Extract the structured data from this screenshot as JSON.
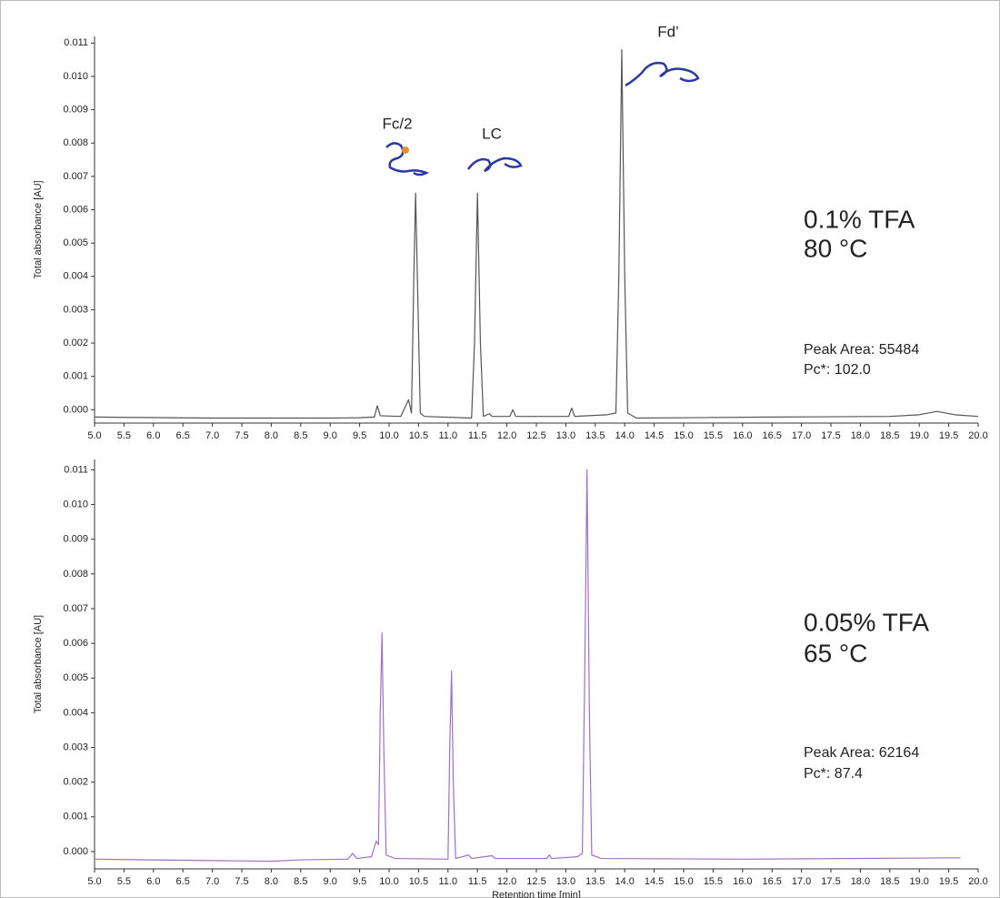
{
  "chart_data": [
    {
      "type": "line",
      "ylabel": "Total absorbance [AU]",
      "color": "#555555",
      "xlim": [
        5,
        20
      ],
      "ylim": [
        -0.0004,
        0.0112
      ],
      "xticks": [
        {
          "value": 5,
          "label": "5.0"
        },
        {
          "value": 5.5,
          "label": "5.5"
        },
        {
          "value": 6,
          "label": "6.0"
        },
        {
          "value": 6.5,
          "label": "6.5"
        },
        {
          "value": 7,
          "label": "7.0"
        },
        {
          "value": 7.5,
          "label": "7.5"
        },
        {
          "value": 8,
          "label": "8.0"
        },
        {
          "value": 8.5,
          "label": "8.5"
        },
        {
          "value": 9,
          "label": "9.0"
        },
        {
          "value": 9.5,
          "label": "9.5"
        },
        {
          "value": 10,
          "label": "10.0"
        },
        {
          "value": 10.5,
          "label": "10.5"
        },
        {
          "value": 11,
          "label": "11.0"
        },
        {
          "value": 11.5,
          "label": "11.5"
        },
        {
          "value": 12,
          "label": "12.0"
        },
        {
          "value": 12.5,
          "label": "12.5"
        },
        {
          "value": 13,
          "label": "13.0"
        },
        {
          "value": 13.5,
          "label": "13.5"
        },
        {
          "value": 14,
          "label": "14.0"
        },
        {
          "value": 14.5,
          "label": "14.5"
        },
        {
          "value": 15,
          "label": "15.0"
        },
        {
          "value": 15.5,
          "label": "15.5"
        },
        {
          "value": 16,
          "label": "16.0"
        },
        {
          "value": 16.5,
          "label": "16.5"
        },
        {
          "value": 17,
          "label": "17.0"
        },
        {
          "value": 17.5,
          "label": "17.5"
        },
        {
          "value": 18,
          "label": "18.0"
        },
        {
          "value": 18.5,
          "label": "18.5"
        },
        {
          "value": 19,
          "label": "19.0"
        },
        {
          "value": 19.5,
          "label": "19.5"
        },
        {
          "value": 20,
          "label": "20.0"
        }
      ],
      "yticks": [
        {
          "value": 0,
          "label": "0.000"
        },
        {
          "value": 0.001,
          "label": "0.001"
        },
        {
          "value": 0.002,
          "label": "0.002"
        },
        {
          "value": 0.003,
          "label": "0.003"
        },
        {
          "value": 0.004,
          "label": "0.004"
        },
        {
          "value": 0.005,
          "label": "0.005"
        },
        {
          "value": 0.006,
          "label": "0.006"
        },
        {
          "value": 0.007,
          "label": "0.007"
        },
        {
          "value": 0.008,
          "label": "0.008"
        },
        {
          "value": 0.009,
          "label": "0.009"
        },
        {
          "value": 0.01,
          "label": "0.010"
        },
        {
          "value": 0.011,
          "label": "0.011"
        }
      ],
      "annotations": [
        "Fc/2",
        "LC",
        "Fd’",
        "0.1% TFA",
        "80 °C",
        "Peak Area: 55484",
        "Pc*: 102.0"
      ],
      "x": [
        5.0,
        7.0,
        9.0,
        9.5,
        9.75,
        9.8,
        9.85,
        10.2,
        10.33,
        10.38,
        10.42,
        10.45,
        10.48,
        10.53,
        10.6,
        11.4,
        11.45,
        11.5,
        11.55,
        11.6,
        11.7,
        11.75,
        12.05,
        12.1,
        12.15,
        13.05,
        13.1,
        13.15,
        13.7,
        13.85,
        13.9,
        13.95,
        14.0,
        14.05,
        14.2,
        16.5,
        18.5,
        19.0,
        19.3,
        19.6,
        20.0
      ],
      "values": [
        -0.00022,
        -0.00025,
        -0.00025,
        -0.00024,
        -0.00022,
        0.00012,
        -0.00018,
        -0.0002,
        0.0003,
        -0.0001,
        0.004,
        0.0065,
        0.004,
        -0.0001,
        -0.0002,
        -0.00025,
        0.002,
        0.0065,
        0.002,
        -0.0002,
        -0.00012,
        -0.0002,
        -0.0002,
        0.0,
        -0.0002,
        -0.0002,
        5e-05,
        -0.0002,
        -0.00015,
        -0.0001,
        0.004,
        0.0108,
        0.004,
        -0.0001,
        -0.00025,
        -0.00022,
        -0.0002,
        -0.00015,
        -5e-05,
        -0.00015,
        -0.0002
      ]
    },
    {
      "type": "line",
      "ylabel": "Total absorbance [AU]",
      "xlabel": "Retention time [min]",
      "color": "#a070c0",
      "xlim": [
        5,
        20
      ],
      "ylim": [
        -0.0005,
        0.0113
      ],
      "xticks": [
        {
          "value": 5,
          "label": "5.0"
        },
        {
          "value": 5.5,
          "label": "5.5"
        },
        {
          "value": 6,
          "label": "6.0"
        },
        {
          "value": 6.5,
          "label": "6.5"
        },
        {
          "value": 7,
          "label": "7.0"
        },
        {
          "value": 7.5,
          "label": "7.5"
        },
        {
          "value": 8,
          "label": "8.0"
        },
        {
          "value": 8.5,
          "label": "8.5"
        },
        {
          "value": 9,
          "label": "9.0"
        },
        {
          "value": 9.5,
          "label": "9.5"
        },
        {
          "value": 10,
          "label": "10.0"
        },
        {
          "value": 10.5,
          "label": "10.5"
        },
        {
          "value": 11,
          "label": "11.0"
        },
        {
          "value": 11.5,
          "label": "11.5"
        },
        {
          "value": 12,
          "label": "12.0"
        },
        {
          "value": 12.5,
          "label": "12.5"
        },
        {
          "value": 13,
          "label": "13.0"
        },
        {
          "value": 13.5,
          "label": "13.5"
        },
        {
          "value": 14,
          "label": "14.0"
        },
        {
          "value": 14.5,
          "label": "14.5"
        },
        {
          "value": 15,
          "label": "15.0"
        },
        {
          "value": 15.5,
          "label": "15.5"
        },
        {
          "value": 16,
          "label": "16.0"
        },
        {
          "value": 16.5,
          "label": "16.5"
        },
        {
          "value": 17,
          "label": "17.0"
        },
        {
          "value": 17.5,
          "label": "17.5"
        },
        {
          "value": 18,
          "label": "18.0"
        },
        {
          "value": 18.5,
          "label": "18.5"
        },
        {
          "value": 19,
          "label": "19.0"
        },
        {
          "value": 19.5,
          "label": "19.5"
        },
        {
          "value": 20,
          "label": "20.0"
        }
      ],
      "yticks": [
        {
          "value": 0,
          "label": "0.000"
        },
        {
          "value": 0.001,
          "label": "0.001"
        },
        {
          "value": 0.002,
          "label": "0.002"
        },
        {
          "value": 0.003,
          "label": "0.003"
        },
        {
          "value": 0.004,
          "label": "0.004"
        },
        {
          "value": 0.005,
          "label": "0.005"
        },
        {
          "value": 0.006,
          "label": "0.006"
        },
        {
          "value": 0.007,
          "label": "0.007"
        },
        {
          "value": 0.008,
          "label": "0.008"
        },
        {
          "value": 0.009,
          "label": "0.009"
        },
        {
          "value": 0.01,
          "label": "0.010"
        },
        {
          "value": 0.011,
          "label": "0.011"
        }
      ],
      "annotations": [
        "0.05% TFA",
        "65 °C",
        "Peak Area: 62164",
        "Pc*: 87.4"
      ],
      "x": [
        5.0,
        8.0,
        8.5,
        9.3,
        9.38,
        9.45,
        9.7,
        9.78,
        9.82,
        9.85,
        9.88,
        9.91,
        9.95,
        10.1,
        11.0,
        11.03,
        11.06,
        11.09,
        11.13,
        11.35,
        11.4,
        11.75,
        11.8,
        12.68,
        12.72,
        12.76,
        13.2,
        13.28,
        13.32,
        13.36,
        13.4,
        13.44,
        13.6,
        16.0,
        19.7
      ],
      "values": [
        -0.00022,
        -0.00028,
        -0.00024,
        -0.00022,
        -5e-05,
        -0.0002,
        -0.00015,
        0.0003,
        0.0002,
        0.004,
        0.0063,
        0.003,
        -0.0001,
        -0.0002,
        -0.00022,
        0.003,
        0.0052,
        0.002,
        -0.0002,
        -0.0001,
        -0.0002,
        -0.00012,
        -0.0002,
        -0.0002,
        -0.0001,
        -0.0002,
        -0.00015,
        -5e-05,
        0.005,
        0.011,
        0.004,
        -0.0001,
        -0.0002,
        -0.00022,
        -0.00018
      ]
    }
  ]
}
